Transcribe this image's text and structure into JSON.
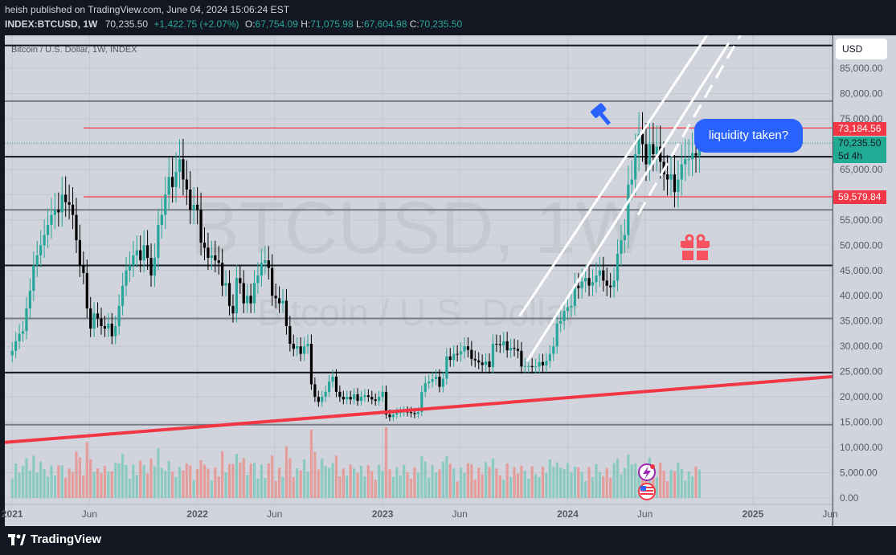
{
  "header": {
    "publisher": "heish published on TradingView.com, June 04, 2024 15:06:24 EST",
    "symbol": "INDEX:BTCUSD, 1W",
    "last": "70,235.50",
    "change": "+1,422.75 (+2.07%)",
    "o_label": "O:",
    "o": "67,754.09",
    "h_label": "H:",
    "h": "71,075.98",
    "l_label": "L:",
    "l": "67,604.98",
    "c_label": "C:",
    "c": "70,235.50"
  },
  "currency": "USD",
  "callout": "liquidity taken?",
  "price_labels": {
    "red_top": "73,184.56",
    "current": "70,235.50",
    "countdown": "5d 4h",
    "red_bottom": "59,579.84"
  },
  "brand": "TradingView",
  "colors": {
    "background": "#131722",
    "plot": "#d1d4dc",
    "up": "#26a69a",
    "down": "#000000",
    "resistance": "#f23645",
    "channel": "#ffffff",
    "callout": "#2962ff",
    "gift": "#f7525f",
    "cursor_icon": "#2962ff"
  },
  "chart_data": {
    "type": "candlestick",
    "title": "Bitcoin / U.S. Dollar, 1W, INDEX",
    "watermark_symbol": "BTCUSD, 1W",
    "watermark_name": "Bitcoin / U.S. Dollar",
    "ylim": [
      0,
      90000
    ],
    "y_ticks": [
      "85,000.00",
      "80,000.00",
      "75,000.00",
      "70,000.00",
      "65,000.00",
      "60,000.00",
      "55,000.00",
      "50,000.00",
      "45,000.00",
      "40,000.00",
      "35,000.00",
      "30,000.00",
      "25,000.00",
      "20,000.00",
      "15,000.00",
      "10,000.00",
      "5,000.00",
      "0.00"
    ],
    "y_tick_values": [
      85000,
      80000,
      75000,
      70000,
      65000,
      60000,
      55000,
      50000,
      45000,
      40000,
      35000,
      30000,
      25000,
      20000,
      15000,
      10000,
      5000,
      0
    ],
    "x_ticks": [
      "2021",
      "Jun",
      "2022",
      "Jun",
      "2023",
      "Jun",
      "2024",
      "Jun",
      "2025",
      "Jun"
    ],
    "x_tick_dates": [
      2021.0,
      2021.417,
      2022.0,
      2022.417,
      2023.0,
      2023.417,
      2024.0,
      2024.417,
      2025.0,
      2025.417
    ],
    "x_range": [
      2020.96,
      2025.43
    ],
    "horizontal_levels": [
      {
        "price": 89500,
        "color": "black",
        "width": 2
      },
      {
        "price": 78500,
        "color": "gray",
        "width": 2
      },
      {
        "price": 73184.56,
        "color": "red",
        "width": 1.3
      },
      {
        "price": 67500,
        "color": "black",
        "width": 2
      },
      {
        "price": 59579.84,
        "color": "red",
        "width": 1.3
      },
      {
        "price": 57000,
        "color": "gray",
        "width": 2
      },
      {
        "price": 46000,
        "color": "black",
        "width": 2
      },
      {
        "price": 35500,
        "color": "gray",
        "width": 2
      },
      {
        "price": 24800,
        "color": "black",
        "width": 2
      },
      {
        "price": 14500,
        "color": "gray",
        "width": 2
      }
    ],
    "trend_line": {
      "from": [
        2020.96,
        11000
      ],
      "to": [
        2025.43,
        24000
      ]
    },
    "channel_lines": [
      {
        "from": [
          2023.74,
          36000
        ],
        "to": [
          2024.76,
          92000
        ],
        "dashed": false
      },
      {
        "from": [
          2024.38,
          56000
        ],
        "to": [
          2024.94,
          92000
        ],
        "dashed": true
      },
      {
        "from": [
          2023.78,
          27000
        ],
        "to": [
          2024.87,
          90000
        ],
        "dashed": false
      }
    ],
    "weekly_close": [
      29100,
      31000,
      32500,
      33000,
      37500,
      41000,
      46000,
      48000,
      50000,
      52000,
      54000,
      56000,
      57000,
      56500,
      60000,
      58500,
      58000,
      56000,
      51000,
      46000,
      44500,
      37500,
      33500,
      36500,
      35500,
      34000,
      33500,
      34500,
      32000,
      34000,
      38000,
      42000,
      45000,
      46000,
      48000,
      49000,
      47000,
      50000,
      47500,
      44000,
      47500,
      54000,
      56000,
      60000,
      63500,
      61500,
      64500,
      67000,
      63000,
      61000,
      57000,
      58000,
      57000,
      50500,
      49500,
      47500,
      48000,
      47000,
      46500,
      42000,
      42500,
      38000,
      36500,
      43500,
      42500,
      38500,
      40000,
      38500,
      42500,
      44000,
      46500,
      47000,
      45500,
      40000,
      39500,
      38500,
      39000,
      34000,
      30500,
      29500,
      30000,
      28500,
      30000,
      30500,
      22500,
      20000,
      19000,
      20000,
      21000,
      23000,
      24000,
      21000,
      20000,
      19500,
      20000,
      19500,
      20500,
      19200,
      20000,
      20300,
      20000,
      19500,
      19200,
      20000,
      21000,
      16500,
      16000,
      16500,
      16800,
      17000,
      17100,
      17000,
      16800,
      16600,
      17000,
      21000,
      22700,
      23000,
      23500,
      24000,
      22000,
      23600,
      28000,
      27300,
      28500,
      28400,
      29000,
      30000,
      29300,
      27500,
      27200,
      26800,
      26300,
      27000,
      25900,
      30500,
      30400,
      30200,
      31000,
      29200,
      29700,
      29500,
      29100,
      26000,
      26100,
      26100,
      25900,
      26000,
      26900,
      26200,
      27100,
      28500,
      30000,
      34500,
      35000,
      37000,
      37700,
      38000,
      42000,
      41500,
      42800,
      43500,
      42000,
      42700,
      44000,
      45000,
      43000,
      42000,
      41700,
      43000,
      48300,
      51000,
      52000,
      62000,
      63000,
      68000,
      72000,
      70000,
      66000,
      70000,
      68000,
      69500,
      66500,
      64000,
      63000,
      64000,
      60500,
      63000,
      66000,
      67000,
      67000,
      68200,
      67750,
      70235
    ],
    "annual_markers": {
      "start": 2021.0,
      "weeks": 179
    }
  }
}
